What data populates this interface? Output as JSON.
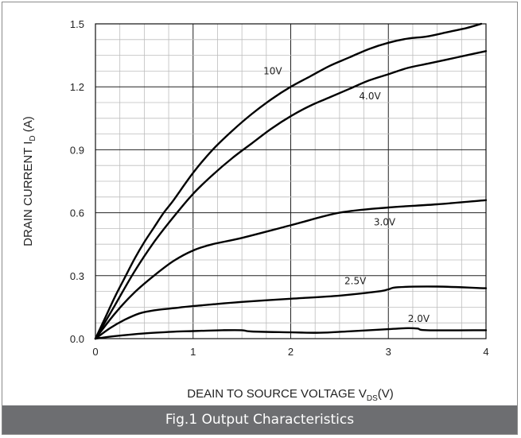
{
  "caption": "Fig.1 Output Characteristics",
  "chart_data": {
    "type": "line",
    "xlabel": {
      "main": "DEAIN TO SOURCE VOLTAGE V",
      "sub": "DS",
      "suffix": "(V)"
    },
    "ylabel": {
      "main": "DRAIN CURRENT I",
      "sub": "D",
      "suffix": " (A)"
    },
    "xlim": [
      0,
      4
    ],
    "ylim": [
      0,
      1.5
    ],
    "x_ticks": [
      "0",
      "1",
      "2",
      "3",
      "4"
    ],
    "y_ticks": [
      "0.0",
      "0.3",
      "0.6",
      "0.9",
      "1.2",
      "1.5"
    ],
    "grid": true,
    "line_color": "#000000",
    "series": [
      {
        "name": "10V",
        "label_at": [
          1.72,
          1.26
        ],
        "x": [
          0,
          0.1,
          0.2,
          0.3,
          0.4,
          0.5,
          0.6,
          0.7,
          0.8,
          1.0,
          1.2,
          1.4,
          1.6,
          1.8,
          2.0,
          2.2,
          2.4,
          2.6,
          2.8,
          3.0,
          3.2,
          3.4,
          3.6,
          3.8,
          3.95
        ],
        "y": [
          0,
          0.1,
          0.2,
          0.29,
          0.38,
          0.46,
          0.53,
          0.6,
          0.66,
          0.79,
          0.9,
          0.99,
          1.07,
          1.14,
          1.2,
          1.25,
          1.3,
          1.34,
          1.38,
          1.41,
          1.43,
          1.44,
          1.46,
          1.48,
          1.5
        ]
      },
      {
        "name": "4.0V",
        "label_at": [
          2.7,
          1.14
        ],
        "x": [
          0,
          0.2,
          0.4,
          0.6,
          0.8,
          1.0,
          1.2,
          1.4,
          1.6,
          1.8,
          2.0,
          2.2,
          2.4,
          2.6,
          2.8,
          3.0,
          3.2,
          3.4,
          3.6,
          3.8,
          4.0
        ],
        "y": [
          0,
          0.16,
          0.32,
          0.46,
          0.58,
          0.69,
          0.78,
          0.86,
          0.93,
          1.0,
          1.06,
          1.11,
          1.15,
          1.19,
          1.23,
          1.26,
          1.29,
          1.31,
          1.33,
          1.35,
          1.37
        ]
      },
      {
        "name": "3.0V",
        "label_at": [
          2.85,
          0.54
        ],
        "x": [
          0,
          0.2,
          0.4,
          0.6,
          0.8,
          1.0,
          1.2,
          1.5,
          2.0,
          2.5,
          3.0,
          3.5,
          4.0
        ],
        "y": [
          0,
          0.12,
          0.22,
          0.3,
          0.37,
          0.42,
          0.45,
          0.48,
          0.54,
          0.6,
          0.625,
          0.64,
          0.66
        ]
      },
      {
        "name": "2.5V",
        "label_at": [
          2.55,
          0.26
        ],
        "x": [
          0,
          0.15,
          0.3,
          0.45,
          0.6,
          0.8,
          1.0,
          1.5,
          2.0,
          2.5,
          2.9,
          3.0,
          3.1,
          3.5,
          4.0
        ],
        "y": [
          0,
          0.05,
          0.09,
          0.12,
          0.135,
          0.145,
          0.155,
          0.175,
          0.19,
          0.205,
          0.225,
          0.235,
          0.245,
          0.248,
          0.24
        ]
      },
      {
        "name": "2.0V",
        "label_at": [
          3.2,
          0.08
        ],
        "x": [
          0,
          0.2,
          0.5,
          0.8,
          1.0,
          1.3,
          1.5,
          1.6,
          2.0,
          2.3,
          2.6,
          3.0,
          3.2,
          3.3,
          3.4,
          4.0
        ],
        "y": [
          0,
          0.012,
          0.025,
          0.033,
          0.036,
          0.04,
          0.04,
          0.034,
          0.03,
          0.028,
          0.035,
          0.045,
          0.05,
          0.048,
          0.04,
          0.04
        ]
      }
    ]
  }
}
